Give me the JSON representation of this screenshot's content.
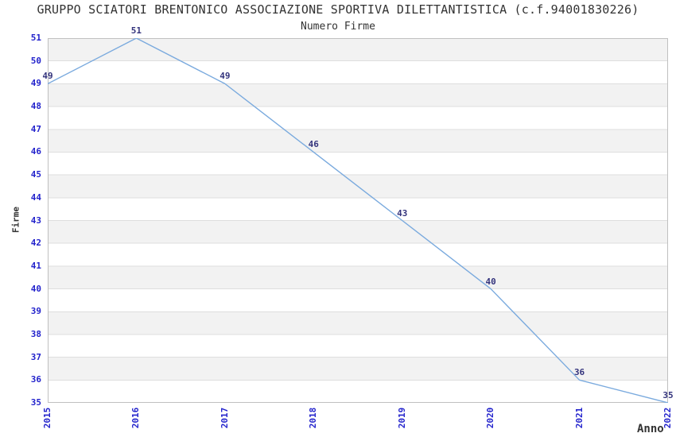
{
  "chart_data": {
    "type": "line",
    "title": "GRUPPO SCIATORI BRENTONICO ASSOCIAZIONE SPORTIVA DILETTANTISTICA (c.f.94001830226)",
    "subtitle": "Numero Firme",
    "xlabel": "Anno",
    "ylabel": "Firme",
    "categories": [
      "2015",
      "2016",
      "2017",
      "2018",
      "2019",
      "2020",
      "2021",
      "2022"
    ],
    "values": [
      49,
      51,
      49,
      46,
      43,
      40,
      36,
      35
    ],
    "ylim": [
      35,
      51
    ],
    "ytick_step": 1,
    "grid": "horizontal-bands",
    "legend_position": "none",
    "data_labels_shown": true,
    "colors": {
      "line": "#7aaade",
      "band_gray": "#f2f2f2",
      "band_white": "#ffffff",
      "gridline": "#dedede",
      "plot_border": "#c0c0c0",
      "tick_label": "#2323cc",
      "value_label": "#34347d",
      "text": "#333333",
      "background": "#ffffff"
    }
  }
}
